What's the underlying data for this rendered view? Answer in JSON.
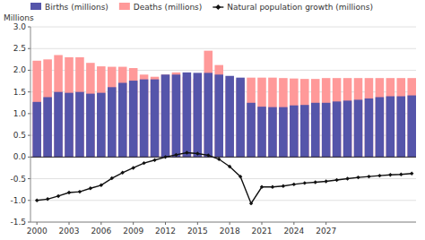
{
  "chart_data": {
    "type": "bar",
    "y_label": "Millions",
    "categories": [
      "2000",
      null,
      null,
      "2003",
      null,
      null,
      "2006",
      null,
      null,
      "2009",
      null,
      null,
      "2012",
      null,
      null,
      "2015",
      null,
      null,
      "2018",
      null,
      null,
      "2021",
      null,
      null,
      "2024",
      null,
      null,
      "2027",
      null,
      null,
      null,
      null,
      null,
      null,
      null,
      null
    ],
    "series": [
      {
        "name": "Births (millions)",
        "type": "bar",
        "color": "#5555aa",
        "values": [
          1.27,
          1.38,
          1.5,
          1.48,
          1.5,
          1.46,
          1.48,
          1.61,
          1.71,
          1.76,
          1.79,
          1.79,
          1.9,
          1.9,
          1.95,
          1.94,
          1.94,
          1.9,
          1.87,
          1.83,
          1.25,
          1.16,
          1.15,
          1.15,
          1.19,
          1.2,
          1.25,
          1.25,
          1.28,
          1.3,
          1.32,
          1.35,
          1.38,
          1.4,
          1.4,
          1.42
        ]
      },
      {
        "name": "Deaths (millions)",
        "type": "bar",
        "color": "#ff9999",
        "values": [
          2.22,
          2.25,
          2.35,
          2.3,
          2.3,
          2.17,
          2.09,
          2.08,
          2.08,
          2.05,
          1.9,
          1.85,
          1.9,
          1.95,
          1.85,
          1.8,
          2.45,
          2.12,
          1.78,
          1.78,
          1.83,
          1.83,
          1.83,
          1.82,
          1.81,
          1.8,
          1.8,
          1.82,
          1.82,
          1.82,
          1.82,
          1.82,
          1.82,
          1.82,
          1.82,
          1.82
        ]
      },
      {
        "name": "Natural population growth (millions)",
        "type": "line",
        "color": "#111111",
        "marker": "diamond",
        "values": [
          -1.0,
          -0.97,
          -0.9,
          -0.82,
          -0.8,
          -0.72,
          -0.65,
          -0.49,
          -0.36,
          -0.25,
          -0.14,
          -0.07,
          0.0,
          0.05,
          0.1,
          0.08,
          0.04,
          -0.05,
          -0.22,
          -0.45,
          -1.07,
          -0.69,
          -0.69,
          -0.67,
          -0.63,
          -0.6,
          -0.58,
          -0.56,
          -0.53,
          -0.5,
          -0.47,
          -0.45,
          -0.43,
          -0.41,
          -0.4,
          -0.38
        ]
      }
    ],
    "ylim": [
      -1.5,
      3.0
    ],
    "yticks": [
      -1.5,
      {
        "value": -1.0,
        "label": "-1.0"
      },
      -0.5,
      {
        "value": 0.0,
        "label": "0.0"
      },
      0.5,
      {
        "value": 1.0,
        "label": "1.0"
      },
      1.5,
      {
        "value": 2.0,
        "label": "2.0"
      },
      2.5,
      {
        "value": 3.0,
        "label": "3.0"
      }
    ],
    "grid": true,
    "legend": "top-left"
  }
}
